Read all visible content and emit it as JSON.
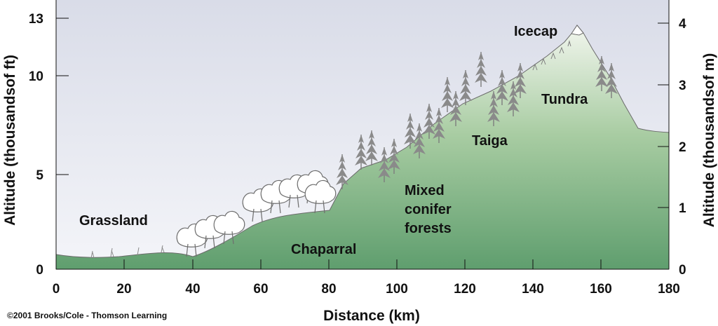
{
  "figure": {
    "left_axis": {
      "title": "Altitude (thousandsof ft)",
      "ticks": [
        {
          "value": 0,
          "label": "0"
        },
        {
          "value": 5,
          "label": "5"
        },
        {
          "value": 10,
          "label": "10"
        },
        {
          "value": 13,
          "label": "13"
        }
      ]
    },
    "right_axis": {
      "title": "Altitude (thousandsof m)",
      "ticks": [
        {
          "value": 0,
          "label": "0"
        },
        {
          "value": 1,
          "label": "1"
        },
        {
          "value": 2,
          "label": "2"
        },
        {
          "value": 3,
          "label": "3"
        },
        {
          "value": 4,
          "label": "4"
        }
      ]
    },
    "x_axis": {
      "title": "Distance (km)",
      "ticks": [
        {
          "value": 0,
          "label": "0"
        },
        {
          "value": 20,
          "label": "20"
        },
        {
          "value": 40,
          "label": "40"
        },
        {
          "value": 60,
          "label": "60"
        },
        {
          "value": 80,
          "label": "80"
        },
        {
          "value": 100,
          "label": "100"
        },
        {
          "value": 120,
          "label": "120"
        },
        {
          "value": 140,
          "label": "140"
        },
        {
          "value": 160,
          "label": "160"
        },
        {
          "value": 180,
          "label": "180"
        }
      ]
    },
    "zones": {
      "grassland": "Grassland",
      "chaparral": "Chaparral",
      "mixed_line1": "Mixed",
      "mixed_line2": "conifer",
      "mixed_line3": "forests",
      "taiga": "Taiga",
      "tundra": "Tundra",
      "icecap": "Icecap"
    },
    "credit": "©2001 Brooks/Cole - Thomson Learning",
    "colors": {
      "sky_top": "#d9dce8",
      "sky_bottom": "#f4f5f9",
      "ground_top": "#f2f6ee",
      "ground_mid": "#a8cca2",
      "ground_bottom": "#5f9e6e",
      "tree": "#7d7d7d",
      "shrub": "#ffffff",
      "ink": "#111111"
    }
  }
}
